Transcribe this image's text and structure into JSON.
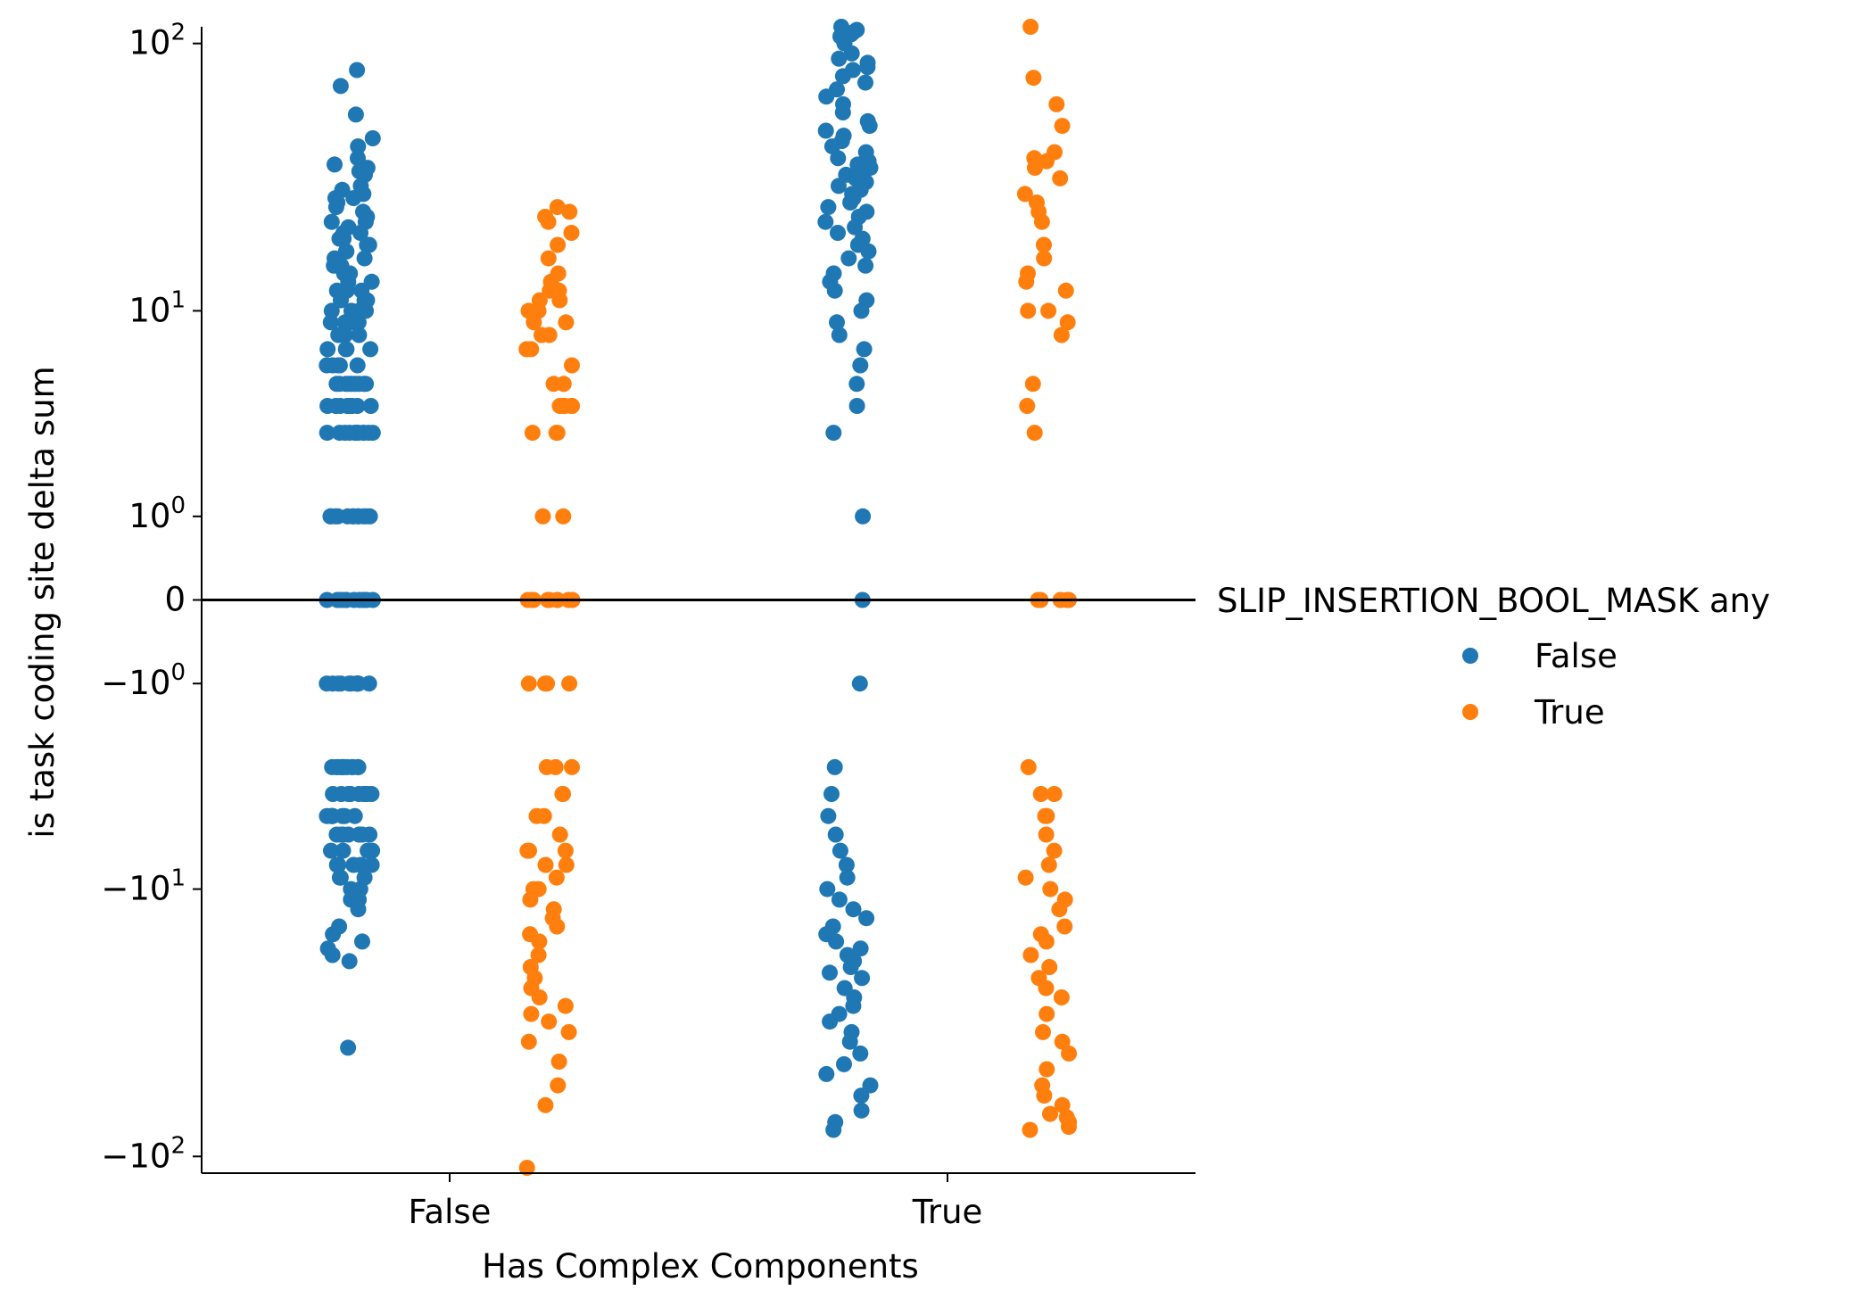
{
  "chart_data": {
    "type": "scatter",
    "subtype": "strip",
    "y_scale": "symlog",
    "y_linthresh": 1,
    "xlabel": "Has Complex Components",
    "ylabel": "is task coding site delta sum",
    "categories": [
      "False",
      "True"
    ],
    "ylim": [
      -115,
      115
    ],
    "y_ticks": [
      {
        "value": 100,
        "base": "10",
        "exp": "2",
        "neg": false
      },
      {
        "value": 10,
        "base": "10",
        "exp": "1",
        "neg": false
      },
      {
        "value": 1,
        "base": "10",
        "exp": "0",
        "neg": false
      },
      {
        "value": 0,
        "text": "0"
      },
      {
        "value": -1,
        "base": "10",
        "exp": "0",
        "neg": true
      },
      {
        "value": -10,
        "base": "10",
        "exp": "1",
        "neg": true
      },
      {
        "value": -100,
        "base": "10",
        "exp": "2",
        "neg": true
      }
    ],
    "hline": {
      "y": 0,
      "color": "#000000"
    },
    "grid": false,
    "legend": {
      "title": "SLIP_INSERTION_BOOL_MASK any",
      "placement": "right"
    },
    "series": [
      {
        "name": "False",
        "color": "#1f77b4",
        "points": {
          "False": [
            80,
            70,
            55,
            45,
            42,
            38,
            36,
            35,
            34,
            33,
            30,
            29,
            28,
            27,
            27,
            26,
            25,
            24,
            23,
            22,
            22,
            21,
            20,
            20,
            19,
            19,
            18,
            18,
            17,
            17,
            16,
            16,
            15,
            15,
            14,
            14,
            13,
            13,
            12,
            12,
            12,
            11,
            11,
            11,
            10,
            10,
            10,
            10,
            9,
            9,
            9,
            9,
            8,
            8,
            8,
            8,
            7,
            7,
            7,
            7,
            6,
            6,
            6,
            6,
            6,
            5,
            5,
            5,
            5,
            5,
            5,
            5,
            5,
            5,
            4,
            4,
            4,
            4,
            4,
            4,
            4,
            4,
            4,
            4,
            3,
            3,
            3,
            3,
            3,
            3,
            3,
            3,
            3,
            3,
            3,
            3,
            1,
            1,
            1,
            1,
            1,
            1,
            1,
            1,
            1,
            1,
            1,
            1,
            0,
            0,
            0,
            0,
            0,
            0,
            0,
            0,
            0,
            0,
            0,
            0,
            0,
            0,
            -1,
            -1,
            -1,
            -1,
            -1,
            -1,
            -1,
            -1,
            -1,
            -1,
            -1,
            -1,
            -3,
            -3,
            -3,
            -3,
            -3,
            -3,
            -3,
            -3,
            -3,
            -3,
            -3,
            -3,
            -4,
            -4,
            -4,
            -4,
            -4,
            -4,
            -4,
            -4,
            -4,
            -4,
            -5,
            -5,
            -5,
            -5,
            -5,
            -5,
            -5,
            -5,
            -6,
            -6,
            -6,
            -6,
            -6,
            -6,
            -6,
            -6,
            -7,
            -7,
            -7,
            -7,
            -8,
            -8,
            -8,
            -8,
            -8,
            -8,
            -9,
            -9,
            -9,
            -10,
            -10,
            -11,
            -11,
            -12,
            -14,
            -15,
            -16,
            -17,
            -18,
            -19,
            -40
          ],
          "True": [
            115,
            112,
            110,
            108,
            106,
            105,
            100,
            92,
            88,
            85,
            82,
            80,
            76,
            72,
            68,
            64,
            60,
            56,
            52,
            50,
            48,
            46,
            44,
            42,
            40,
            38,
            37,
            36,
            35,
            34,
            33,
            32,
            31,
            30,
            29,
            28,
            27,
            26,
            25,
            24,
            23,
            22,
            21,
            20,
            19,
            18,
            17,
            16,
            15,
            14,
            13,
            12,
            11,
            10,
            9,
            8,
            7,
            6,
            5,
            4,
            3,
            1,
            0,
            -1,
            -3,
            -4,
            -5,
            -6,
            -7,
            -8,
            -9,
            -10,
            -11,
            -12,
            -13,
            -14,
            -15,
            -16,
            -17,
            -18,
            -19,
            -20,
            -21,
            -22,
            -24,
            -26,
            -28,
            -30,
            -32,
            -35,
            -38,
            -42,
            -46,
            -50,
            -55,
            -60,
            -68,
            -75,
            -80
          ]
        }
      },
      {
        "name": "True",
        "color": "#ff7f0e",
        "points": {
          "False": [
            25,
            24,
            23,
            22,
            20,
            18,
            16,
            14,
            13,
            12,
            12,
            11,
            11,
            10,
            10,
            9,
            9,
            8,
            8,
            7,
            7,
            6,
            5,
            5,
            4,
            4,
            4,
            4,
            4,
            3,
            3,
            3,
            1,
            1,
            0,
            0,
            0,
            0,
            0,
            0,
            0,
            0,
            0,
            -1,
            -1,
            -1,
            -1,
            -3,
            -3,
            -3,
            -4,
            -4,
            -5,
            -5,
            -6,
            -7,
            -7,
            -7,
            -8,
            -8,
            -9,
            -10,
            -10,
            -11,
            -12,
            -13,
            -14,
            -15,
            -16,
            -18,
            -20,
            -22,
            -24,
            -26,
            -28,
            -30,
            -32,
            -35,
            -38,
            -45,
            -55,
            -65,
            -110
          ],
          "True": [
            115,
            75,
            60,
            50,
            40,
            38,
            37,
            35,
            32,
            28,
            26,
            24,
            22,
            18,
            16,
            14,
            13,
            12,
            10,
            10,
            9,
            8,
            5,
            4,
            3,
            0,
            0,
            0,
            0,
            0,
            -3,
            -4,
            -4,
            -5,
            -5,
            -6,
            -7,
            -8,
            -9,
            -10,
            -11,
            -12,
            -14,
            -15,
            -16,
            -18,
            -20,
            -22,
            -24,
            -26,
            -30,
            -35,
            -38,
            -42,
            -48,
            -55,
            -60,
            -65,
            -70,
            -72,
            -75,
            -78,
            -80
          ]
        }
      }
    ]
  }
}
